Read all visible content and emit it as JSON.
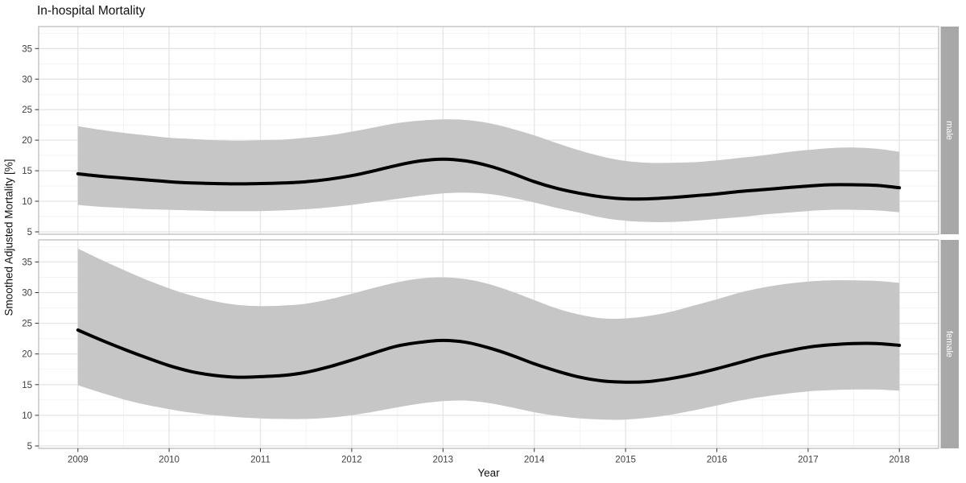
{
  "chart_data": {
    "type": "line",
    "subtype": "smoothed-line-with-confidence-ribbon, faceted by sex (rows)",
    "title": "In-hospital Mortality",
    "xlabel": "Year",
    "ylabel": "Smoothed Adjusted Mortality [%]",
    "legend": "none",
    "grid": "major+minor",
    "facet_labels": [
      "male",
      "female"
    ],
    "x_ticks": [
      2009,
      2010,
      2011,
      2012,
      2013,
      2014,
      2015,
      2016,
      2017,
      2018
    ],
    "y_ticks": [
      5,
      10,
      15,
      20,
      25,
      30,
      35
    ],
    "xlim": [
      2008.57,
      2018.43
    ],
    "ylim": [
      4.6,
      38.6
    ],
    "x": [
      2009,
      2009.25,
      2009.5,
      2009.75,
      2010,
      2010.25,
      2010.5,
      2010.75,
      2011,
      2011.25,
      2011.5,
      2011.75,
      2012,
      2012.25,
      2012.5,
      2012.75,
      2013,
      2013.25,
      2013.5,
      2013.75,
      2014,
      2014.25,
      2014.5,
      2014.75,
      2015,
      2015.25,
      2015.5,
      2015.75,
      2016,
      2016.25,
      2016.5,
      2016.75,
      2017,
      2017.25,
      2017.5,
      2017.75,
      2018
    ],
    "series": [
      {
        "name": "male",
        "line": [
          14.5,
          14.1,
          13.8,
          13.5,
          13.2,
          13.0,
          12.9,
          12.85,
          12.9,
          13.0,
          13.2,
          13.6,
          14.2,
          15.0,
          15.9,
          16.6,
          16.9,
          16.6,
          15.8,
          14.6,
          13.2,
          12.1,
          11.3,
          10.7,
          10.4,
          10.4,
          10.6,
          10.9,
          11.2,
          11.6,
          11.9,
          12.2,
          12.5,
          12.7,
          12.7,
          12.6,
          12.2
        ],
        "ci_upper": [
          22.3,
          21.7,
          21.2,
          20.8,
          20.4,
          20.2,
          20.0,
          19.9,
          20.0,
          20.1,
          20.4,
          20.8,
          21.4,
          22.1,
          22.8,
          23.2,
          23.4,
          23.3,
          22.8,
          21.9,
          20.8,
          19.5,
          18.3,
          17.3,
          16.6,
          16.3,
          16.3,
          16.4,
          16.7,
          17.1,
          17.5,
          18.0,
          18.4,
          18.7,
          18.8,
          18.6,
          18.1
        ],
        "ci_lower": [
          9.4,
          9.1,
          8.9,
          8.7,
          8.6,
          8.5,
          8.4,
          8.4,
          8.4,
          8.5,
          8.7,
          9.0,
          9.4,
          9.9,
          10.4,
          10.9,
          11.3,
          11.4,
          11.2,
          10.6,
          9.8,
          8.9,
          8.1,
          7.3,
          6.8,
          6.6,
          6.6,
          6.8,
          7.1,
          7.4,
          7.8,
          8.1,
          8.4,
          8.6,
          8.6,
          8.5,
          8.2
        ]
      },
      {
        "name": "female",
        "line": [
          23.9,
          22.3,
          20.8,
          19.4,
          18.1,
          17.1,
          16.5,
          16.2,
          16.3,
          16.5,
          17.0,
          17.9,
          19.0,
          20.2,
          21.3,
          21.9,
          22.2,
          21.9,
          21.0,
          19.8,
          18.4,
          17.2,
          16.2,
          15.6,
          15.4,
          15.5,
          16.0,
          16.7,
          17.6,
          18.6,
          19.6,
          20.4,
          21.1,
          21.5,
          21.7,
          21.7,
          21.4
        ],
        "ci_upper": [
          37.2,
          35.4,
          33.7,
          32.1,
          30.7,
          29.5,
          28.6,
          28.0,
          27.8,
          27.9,
          28.2,
          28.9,
          29.8,
          30.8,
          31.7,
          32.3,
          32.5,
          32.2,
          31.4,
          30.2,
          28.8,
          27.4,
          26.4,
          25.8,
          25.8,
          26.2,
          26.9,
          27.9,
          28.9,
          30.0,
          30.8,
          31.4,
          31.8,
          32.0,
          32.0,
          31.9,
          31.6
        ],
        "ci_lower": [
          14.9,
          13.7,
          12.6,
          11.7,
          11.0,
          10.4,
          10.0,
          9.7,
          9.5,
          9.4,
          9.4,
          9.6,
          10.0,
          10.6,
          11.3,
          11.9,
          12.3,
          12.4,
          12.0,
          11.3,
          10.5,
          9.9,
          9.5,
          9.3,
          9.3,
          9.6,
          10.1,
          10.8,
          11.6,
          12.4,
          13.0,
          13.5,
          13.9,
          14.1,
          14.2,
          14.2,
          14.0
        ]
      }
    ],
    "colors": {
      "line": "#000000",
      "ribbon": "#c6c6c6",
      "strip_bg": "#a8a8a8",
      "strip_text": "#ffffff",
      "panel_bg": "#ffffff",
      "panel_border": "#b8b8b8",
      "grid_major": "#e4e4e4",
      "grid_minor": "#f2f2f2",
      "tick_mark": "#333333",
      "tick_label": "#404040"
    }
  }
}
